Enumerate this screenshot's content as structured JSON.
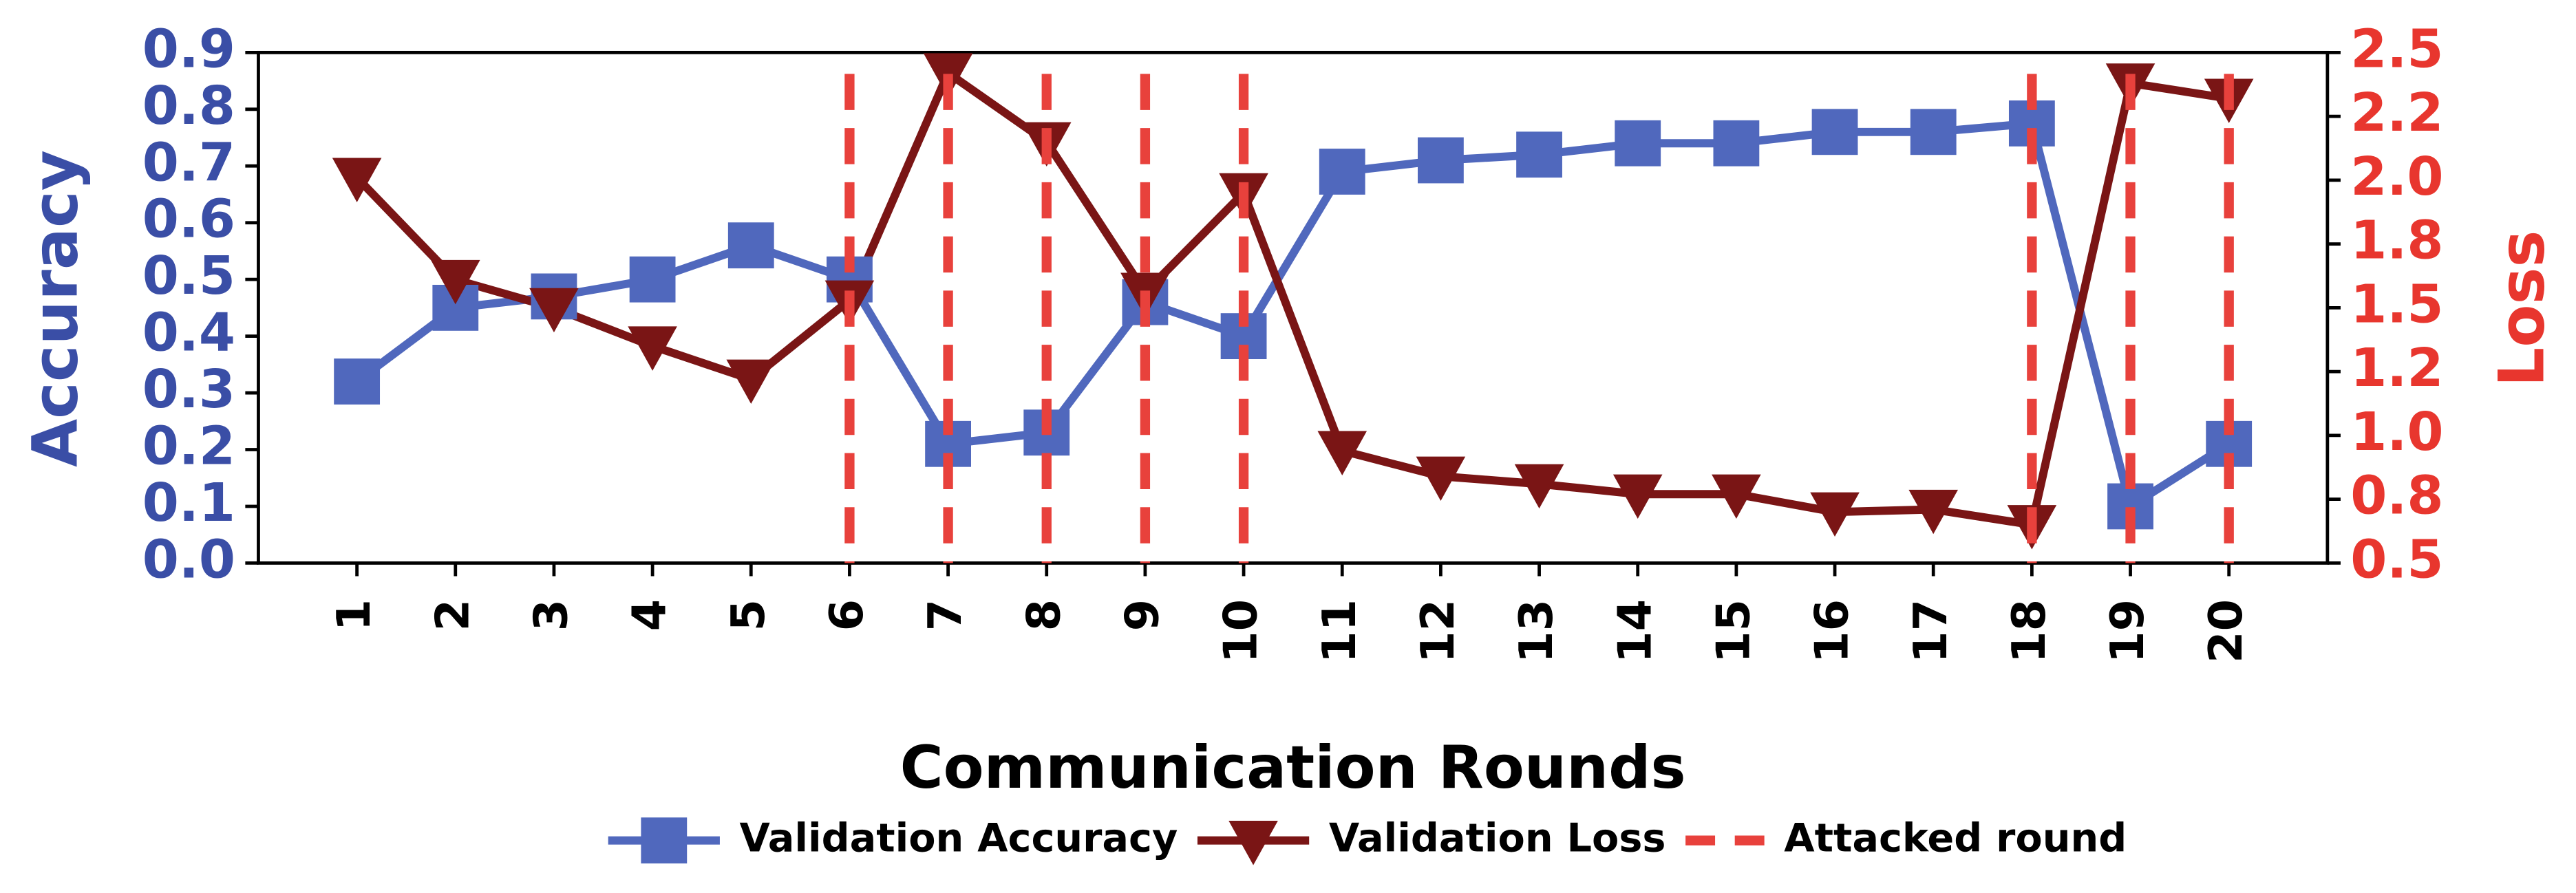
{
  "chart_data": {
    "type": "line",
    "x_label": "Communication Rounds",
    "y_label": "Accuracy",
    "y2_label": "Loss",
    "categories": [
      "1",
      "2",
      "3",
      "4",
      "5",
      "6",
      "7",
      "8",
      "9",
      "10",
      "11",
      "12",
      "13",
      "14",
      "15",
      "16",
      "17",
      "18",
      "19",
      "20"
    ],
    "series": [
      {
        "name": "Validation Accuracy",
        "color": "#5068bd",
        "marker": "square",
        "axis": "y",
        "values": [
          0.32,
          0.45,
          0.47,
          0.5,
          0.56,
          0.5,
          0.21,
          0.23,
          0.46,
          0.4,
          0.69,
          0.71,
          0.72,
          0.74,
          0.74,
          0.76,
          0.76,
          0.775,
          0.1,
          0.21
        ]
      },
      {
        "name": "Validation Loss",
        "color": "#7a1515",
        "marker": "triangle-down",
        "axis": "y2",
        "values": [
          2.01,
          1.61,
          1.5,
          1.35,
          1.22,
          1.53,
          2.42,
          2.15,
          1.56,
          1.95,
          0.94,
          0.84,
          0.81,
          0.77,
          0.77,
          0.7,
          0.71,
          0.65,
          2.38,
          2.32
        ]
      }
    ],
    "attacked": {
      "name": "Attacked round",
      "color": "#e8413c",
      "rounds": [
        6,
        7,
        8,
        9,
        10,
        18,
        19,
        20
      ]
    },
    "ylim": [
      0,
      0.9
    ],
    "yticks": [
      {
        "value": 0,
        "label": "0.0"
      },
      0.1,
      0.2,
      0.3,
      0.4,
      0.5,
      0.6,
      0.7,
      0.8,
      0.9
    ],
    "y_color": "#3a4ea6",
    "y2lim": [
      0.5,
      2.5
    ],
    "y2ticks": [
      0.5,
      {
        "value": 0.75,
        "label": "0.8"
      },
      {
        "value": 1.0,
        "label": "1.0"
      },
      {
        "value": 1.25,
        "label": "1.2"
      },
      1.5,
      {
        "value": 1.75,
        "label": "1.8"
      },
      {
        "value": 2.0,
        "label": "2.0"
      },
      {
        "value": 2.25,
        "label": "2.2"
      },
      2.5
    ],
    "y2_color": "#e8362e",
    "legend": "bottom"
  }
}
